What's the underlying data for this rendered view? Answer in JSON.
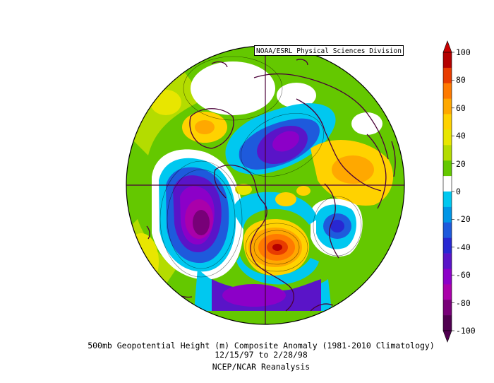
{
  "credit": "NOAA/ESRL Physical Sciences Division",
  "caption": {
    "line1": "500mb Geopotential Height (m) Composite Anomaly (1981-2010 Climatology)",
    "line2": "12/15/97  to 2/28/98",
    "line3": "NCEP/NCAR Reanalysis"
  },
  "colorbar": {
    "ticks": [
      "100",
      "80",
      "60",
      "40",
      "20",
      "0",
      "-20",
      "-40",
      "-60",
      "-80",
      "-100"
    ],
    "colors": [
      "#b40000",
      "#e83c00",
      "#ff7a00",
      "#ffa800",
      "#ffd200",
      "#e8e600",
      "#b4dc00",
      "#64c800",
      "#ffffff",
      "#00c8f0",
      "#0096e6",
      "#1e5adc",
      "#2828d2",
      "#5a14c8",
      "#8c00c8",
      "#aa00aa",
      "#780078",
      "#500050"
    ],
    "top_arrow_color": "#c80000",
    "bottom_arrow_color": "#500050"
  }
}
